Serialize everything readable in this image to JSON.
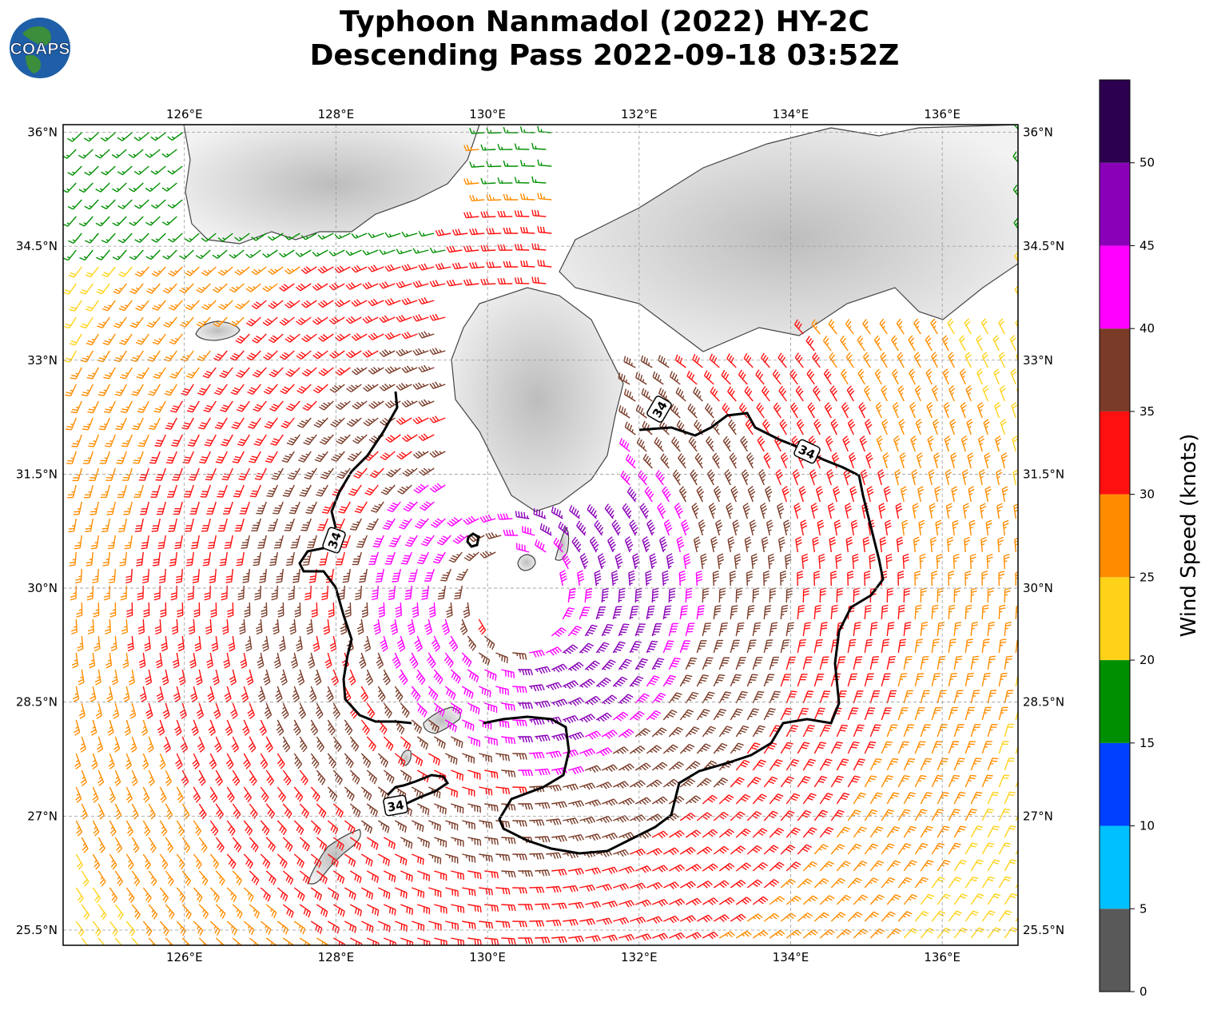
{
  "title": {
    "line1": "Typhoon Nanmadol (2022) HY-2C",
    "line2": "Descending Pass 2022-09-18 03:52Z"
  },
  "logo": {
    "text": "COAPS",
    "colors": {
      "ocean": "#1f5fa8",
      "land": "#3c8d3c"
    }
  },
  "map": {
    "lon_ticks": [
      "126°E",
      "128°E",
      "130°E",
      "132°E",
      "134°E",
      "136°E"
    ],
    "lat_ticks": [
      "36°N",
      "34.5°N",
      "33°N",
      "31.5°N",
      "30°N",
      "28.5°N",
      "27°N",
      "25.5°N"
    ],
    "lon_range": [
      124.4,
      137.0
    ],
    "lat_range": [
      25.3,
      36.1
    ],
    "storm_center": {
      "lon": 130.4,
      "lat": 29.9
    },
    "contour_label": "34",
    "contour_labels": [
      "34",
      "34",
      "34",
      "34"
    ]
  },
  "colorbar": {
    "label": "Wind Speed (knots)",
    "ticks": [
      "0",
      "5",
      "10",
      "15",
      "20",
      "25",
      "30",
      "35",
      "40",
      "45",
      "50"
    ],
    "bins": [
      {
        "min": 0,
        "max": 5,
        "color": "#595959"
      },
      {
        "min": 5,
        "max": 10,
        "color": "#00bfff"
      },
      {
        "min": 10,
        "max": 15,
        "color": "#0040ff"
      },
      {
        "min": 15,
        "max": 20,
        "color": "#008f00"
      },
      {
        "min": 20,
        "max": 25,
        "color": "#ffd21a"
      },
      {
        "min": 25,
        "max": 30,
        "color": "#ff8c00"
      },
      {
        "min": 30,
        "max": 35,
        "color": "#ff1010"
      },
      {
        "min": 35,
        "max": 40,
        "color": "#7a3b28"
      },
      {
        "min": 40,
        "max": 45,
        "color": "#ff00ff"
      },
      {
        "min": 45,
        "max": 50,
        "color": "#8a00b8"
      },
      {
        "min": 50,
        "max": 55,
        "color": "#2d004f"
      }
    ]
  }
}
